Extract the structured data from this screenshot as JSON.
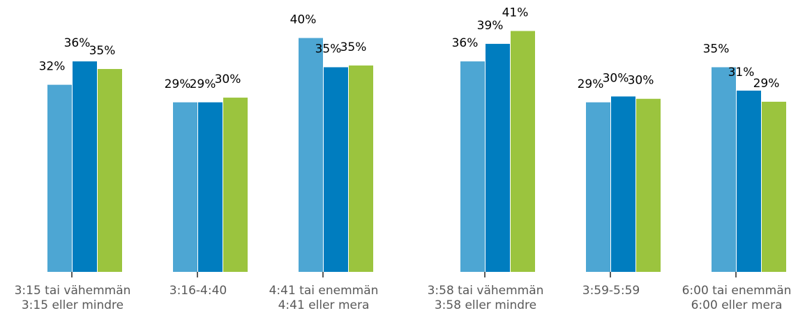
{
  "chart_data": {
    "type": "bar",
    "categories": [
      [
        "3:15 tai vähemmän",
        "3:15 eller mindre"
      ],
      [
        "3:16-4:40"
      ],
      [
        "4:41 tai enemmän",
        "4:41 eller mera"
      ],
      [
        "3:58 tai vähemmän",
        "3:58 eller mindre"
      ],
      [
        "3:59-5:59"
      ],
      [
        "6:00 tai enemmän",
        "6:00 eller mera"
      ]
    ],
    "series": [
      {
        "color": "#4da6d3",
        "values": [
          32,
          29,
          40,
          36,
          29,
          35
        ],
        "value_labels": [
          "32%",
          "29%",
          "40%",
          "36%",
          "29%",
          "35%"
        ]
      },
      {
        "color": "#007dbf",
        "values": [
          36,
          29,
          35,
          39,
          30,
          31
        ],
        "value_labels": [
          "36%",
          "29%",
          "35%",
          "39%",
          "30%",
          "31%"
        ]
      },
      {
        "color": "#9bc43e",
        "values": [
          34.7,
          29.8,
          35.3,
          41.2,
          29.6,
          29.1
        ],
        "value_labels": [
          "35%",
          "30%",
          "35%",
          "41%",
          "30%",
          "29%"
        ]
      }
    ],
    "ylim": [
      0,
      46.5
    ]
  }
}
